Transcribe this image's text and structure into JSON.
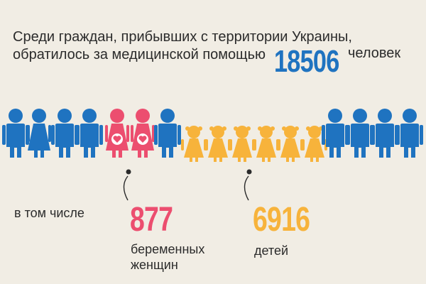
{
  "headline": {
    "line1": "Среди граждан, прибывших с территории Украины,",
    "line2": "обратилось за медицинской помощью"
  },
  "total": {
    "value": "18506",
    "unit": "человек"
  },
  "figures": [
    "man",
    "woman",
    "man",
    "man",
    "pregnant",
    "pregnant",
    "man",
    "child",
    "child",
    "child",
    "child",
    "child",
    "child",
    "man",
    "man",
    "man",
    "man"
  ],
  "colors": {
    "man": "#1f73c0",
    "woman": "#1f73c0",
    "pregnant": "#ec4e6f",
    "child": "#f7b33b",
    "text": "#2b2b2b"
  },
  "included_label": "в том числе",
  "pregnant_stat": {
    "value": "877",
    "label_line1": "беременных",
    "label_line2": "женщин"
  },
  "children_stat": {
    "value": "6916",
    "label": "детей"
  }
}
